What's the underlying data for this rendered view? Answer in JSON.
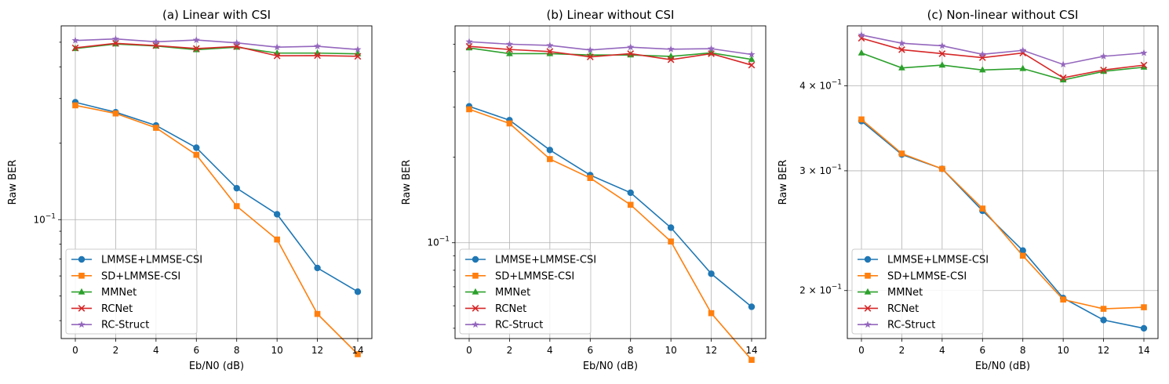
{
  "chart_data": [
    {
      "type": "line",
      "title": "(a) Linear with CSI",
      "xlabel": "Eb/N0 (dB)",
      "ylabel": "Raw BER",
      "yscale": "log",
      "x": [
        0,
        2,
        4,
        6,
        8,
        10,
        12,
        14
      ],
      "xticks": [
        "0",
        "2",
        "4",
        "6",
        "8",
        "10",
        "12",
        "14"
      ],
      "xlim": [
        -0.7,
        14.7
      ],
      "ylim": [
        0.034,
        0.58
      ],
      "yticks": [
        {
          "value": 0.1,
          "mantissa": "",
          "base": "10",
          "exp": "−1"
        }
      ],
      "grid": true,
      "legend": "lower left",
      "series": [
        {
          "name": "LMMSE+LMMSE-CSI",
          "color": "#1f77b4",
          "marker": "circle",
          "values": [
            0.29,
            0.265,
            0.235,
            0.192,
            0.133,
            0.105,
            0.0645,
            0.052
          ]
        },
        {
          "name": "SD+LMMSE-CSI",
          "color": "#ff7f0e",
          "marker": "square",
          "values": [
            0.282,
            0.262,
            0.23,
            0.18,
            0.113,
            0.0835,
            0.0425,
            0.0295
          ]
        },
        {
          "name": "MMNet",
          "color": "#2ca02c",
          "marker": "triangle",
          "values": [
            0.472,
            0.492,
            0.483,
            0.467,
            0.478,
            0.453,
            0.453,
            0.45
          ]
        },
        {
          "name": "RCNet",
          "color": "#d62728",
          "marker": "x",
          "values": [
            0.475,
            0.495,
            0.485,
            0.472,
            0.481,
            0.442,
            0.443,
            0.44
          ]
        },
        {
          "name": "RC-Struct",
          "color": "#9467bd",
          "marker": "star",
          "values": [
            0.508,
            0.515,
            0.502,
            0.51,
            0.497,
            0.478,
            0.482,
            0.468
          ]
        }
      ]
    },
    {
      "type": "line",
      "title": "(b) Linear without CSI",
      "xlabel": "Eb/N0 (dB)",
      "ylabel": "Raw BER",
      "yscale": "log",
      "x": [
        0,
        2,
        4,
        6,
        8,
        10,
        12,
        14
      ],
      "xticks": [
        "0",
        "2",
        "4",
        "6",
        "8",
        "10",
        "12",
        "14"
      ],
      "xlim": [
        -0.7,
        14.7
      ],
      "ylim": [
        0.046,
        0.58
      ],
      "yticks": [
        {
          "value": 0.1,
          "mantissa": "",
          "base": "10",
          "exp": "−1"
        }
      ],
      "grid": true,
      "legend": "lower left",
      "series": [
        {
          "name": "LMMSE+LMMSE-CSI",
          "color": "#1f77b4",
          "marker": "circle",
          "values": [
            0.302,
            0.27,
            0.212,
            0.173,
            0.15,
            0.113,
            0.0778,
            0.0595
          ]
        },
        {
          "name": "SD+LMMSE-CSI",
          "color": "#ff7f0e",
          "marker": "square",
          "values": [
            0.295,
            0.263,
            0.197,
            0.169,
            0.136,
            0.101,
            0.0565,
            0.0387
          ]
        },
        {
          "name": "MMNet",
          "color": "#2ca02c",
          "marker": "triangle",
          "values": [
            0.485,
            0.463,
            0.463,
            0.458,
            0.458,
            0.453,
            0.466,
            0.442
          ]
        },
        {
          "name": "RCNet",
          "color": "#d62728",
          "marker": "x",
          "values": [
            0.491,
            0.479,
            0.471,
            0.451,
            0.463,
            0.441,
            0.463,
            0.422
          ]
        },
        {
          "name": "RC-Struct",
          "color": "#9467bd",
          "marker": "star",
          "values": [
            0.51,
            0.5,
            0.495,
            0.477,
            0.488,
            0.48,
            0.482,
            0.46
          ]
        }
      ]
    },
    {
      "type": "line",
      "title": "(c) Non-linear without CSI",
      "xlabel": "Eb/N0 (dB)",
      "ylabel": "Raw BER",
      "yscale": "log",
      "x": [
        0,
        2,
        4,
        6,
        8,
        10,
        12,
        14
      ],
      "xticks": [
        "0",
        "2",
        "4",
        "6",
        "8",
        "10",
        "12",
        "14"
      ],
      "xlim": [
        -0.7,
        14.7
      ],
      "ylim": [
        0.17,
        0.49
      ],
      "yticks": [
        {
          "value": 0.2,
          "mantissa": "2 × ",
          "base": "10",
          "exp": "−1"
        },
        {
          "value": 0.3,
          "mantissa": "3 × ",
          "base": "10",
          "exp": "−1"
        },
        {
          "value": 0.4,
          "mantissa": "4 × ",
          "base": "10",
          "exp": "−1"
        }
      ],
      "grid": true,
      "legend": "lower left",
      "series": [
        {
          "name": "LMMSE+LMMSE-CSI",
          "color": "#1f77b4",
          "marker": "circle",
          "values": [
            0.355,
            0.317,
            0.302,
            0.262,
            0.229,
            0.195,
            0.181,
            0.176
          ]
        },
        {
          "name": "SD+LMMSE-CSI",
          "color": "#ff7f0e",
          "marker": "square",
          "values": [
            0.357,
            0.318,
            0.302,
            0.264,
            0.225,
            0.194,
            0.188,
            0.189
          ]
        },
        {
          "name": "MMNet",
          "color": "#2ca02c",
          "marker": "triangle",
          "values": [
            0.447,
            0.425,
            0.429,
            0.422,
            0.424,
            0.408,
            0.42,
            0.426
          ]
        },
        {
          "name": "RCNet",
          "color": "#d62728",
          "marker": "x",
          "values": [
            0.47,
            0.452,
            0.446,
            0.44,
            0.447,
            0.411,
            0.422,
            0.429
          ]
        },
        {
          "name": "RC-Struct",
          "color": "#9467bd",
          "marker": "star",
          "values": [
            0.475,
            0.462,
            0.458,
            0.445,
            0.451,
            0.43,
            0.442,
            0.447
          ]
        }
      ]
    }
  ]
}
